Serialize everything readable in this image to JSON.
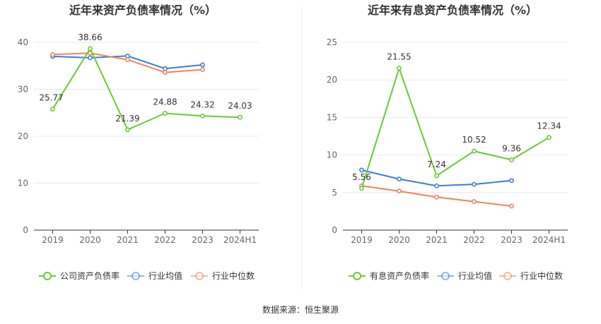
{
  "footer": {
    "source": "数据来源：恒生聚源"
  },
  "colors": {
    "company": "#66cc33",
    "avg": "#3b7ddd",
    "median": "#f0845c",
    "grid": "#e6e9f0",
    "axis": "#333333"
  },
  "chart_data": [
    {
      "type": "line",
      "title": "近年来资产负债率情况（%）",
      "categories": [
        "2019",
        "2020",
        "2021",
        "2022",
        "2023",
        "2024H1"
      ],
      "ylim": [
        0,
        40
      ],
      "yticks": [
        "0",
        "10",
        "20",
        "30",
        "40"
      ],
      "grid": true,
      "legend": "bottom",
      "series": [
        {
          "name": "公司资产负债率",
          "values": [
            25.77,
            38.66,
            21.39,
            24.88,
            24.32,
            24.03
          ],
          "labels": [
            "25.77",
            "38.66",
            "21.39",
            "24.88",
            "24.32",
            "24.03"
          ]
        },
        {
          "name": "行业均值",
          "values": [
            37.0,
            36.7,
            37.1,
            34.4,
            35.2,
            null
          ]
        },
        {
          "name": "行业中位数",
          "values": [
            37.4,
            37.7,
            36.3,
            33.6,
            34.2,
            null
          ]
        }
      ]
    },
    {
      "type": "line",
      "title": "近年来有息资产负债率情况（%）",
      "categories": [
        "2019",
        "2020",
        "2021",
        "2022",
        "2023",
        "2024H1"
      ],
      "ylim": [
        0,
        25
      ],
      "yticks": [
        "0",
        "5",
        "10",
        "15",
        "20",
        "25"
      ],
      "grid": true,
      "legend": "bottom",
      "series": [
        {
          "name": "有息资产负债率",
          "values": [
            5.56,
            21.55,
            7.24,
            10.52,
            9.36,
            12.34
          ],
          "labels": [
            "5.56",
            "21.55",
            "7.24",
            "10.52",
            "9.36",
            "12.34"
          ]
        },
        {
          "name": "行业均值",
          "values": [
            8.0,
            6.8,
            5.9,
            6.1,
            6.6,
            null
          ]
        },
        {
          "name": "行业中位数",
          "values": [
            5.9,
            5.2,
            4.4,
            3.8,
            3.2,
            null
          ]
        }
      ]
    }
  ]
}
